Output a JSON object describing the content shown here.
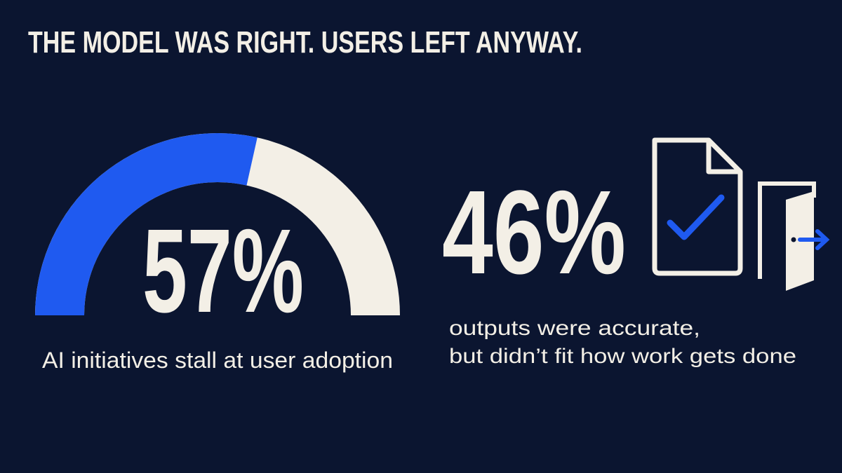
{
  "title": "THE MODEL WAS RIGHT. USERS LEFT ANYWAY.",
  "chart_data": {
    "type": "gauge",
    "value": 57,
    "value_label": "57%",
    "range": [
      0,
      100
    ],
    "color": "#1f5af0",
    "track_color": "#f3efe6",
    "caption": "AI initiatives stall at user adoption"
  },
  "stat": {
    "text": "46%",
    "caption_lines": [
      "outputs were accurate,",
      "but didn’t fit how work gets done"
    ]
  }
}
